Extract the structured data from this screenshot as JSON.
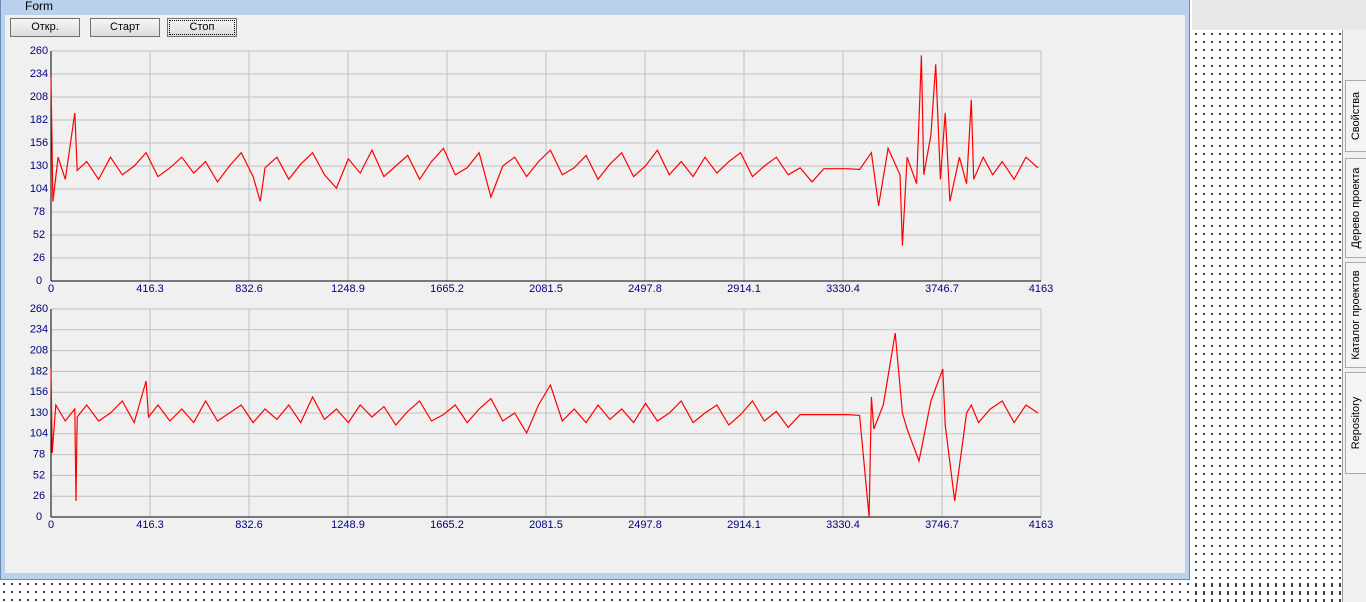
{
  "window": {
    "title": "Form",
    "buttons": [
      "Откр.",
      "Старт",
      "Стоп"
    ]
  },
  "side_tabs": [
    "Свойства",
    "Дерево проекта",
    "Каталог проектов",
    "Repository"
  ],
  "chart_data": [
    {
      "type": "line",
      "color": "#ff0000",
      "grid": true,
      "xlim": [
        0,
        4163
      ],
      "ylim": [
        0,
        260
      ],
      "xticks": [
        0,
        416.3,
        832.6,
        1248.9,
        1665.2,
        2081.5,
        2497.8,
        2914.1,
        3330.4,
        3746.7,
        4163
      ],
      "yticks": [
        0,
        26,
        52,
        78,
        104,
        130,
        156,
        182,
        208,
        234,
        260
      ],
      "x": [
        0,
        8,
        30,
        60,
        100,
        110,
        150,
        200,
        250,
        300,
        350,
        400,
        450,
        500,
        550,
        600,
        650,
        700,
        750,
        800,
        850,
        880,
        900,
        950,
        1000,
        1050,
        1100,
        1150,
        1200,
        1250,
        1300,
        1350,
        1400,
        1450,
        1500,
        1550,
        1600,
        1650,
        1700,
        1750,
        1800,
        1850,
        1900,
        1950,
        2000,
        2050,
        2100,
        2150,
        2200,
        2250,
        2300,
        2350,
        2400,
        2450,
        2500,
        2550,
        2600,
        2650,
        2700,
        2750,
        2800,
        2850,
        2900,
        2950,
        3000,
        3050,
        3100,
        3150,
        3200,
        3250,
        3300,
        3350,
        3400,
        3450,
        3480,
        3520,
        3570,
        3580,
        3600,
        3640,
        3660,
        3670,
        3700,
        3720,
        3740,
        3760,
        3780,
        3820,
        3850,
        3870,
        3880,
        3920,
        3960,
        4000,
        4050,
        4100,
        4150
      ],
      "values": [
        230,
        90,
        140,
        115,
        190,
        125,
        135,
        115,
        140,
        120,
        130,
        145,
        118,
        128,
        140,
        122,
        135,
        112,
        130,
        145,
        118,
        90,
        128,
        140,
        115,
        132,
        145,
        120,
        105,
        138,
        122,
        148,
        118,
        130,
        142,
        115,
        135,
        150,
        120,
        128,
        145,
        95,
        130,
        140,
        118,
        135,
        148,
        120,
        128,
        142,
        115,
        132,
        145,
        118,
        130,
        148,
        120,
        135,
        118,
        140,
        122,
        135,
        145,
        118,
        130,
        140,
        120,
        128,
        112,
        127,
        127,
        127,
        126,
        145,
        85,
        150,
        120,
        40,
        140,
        110,
        255,
        120,
        165,
        245,
        115,
        190,
        90,
        140,
        110,
        205,
        115,
        140,
        120,
        135,
        115,
        140,
        128
      ]
    },
    {
      "type": "line",
      "color": "#ff0000",
      "grid": true,
      "xlim": [
        0,
        4163
      ],
      "ylim": [
        0,
        260
      ],
      "xticks": [
        0,
        416.3,
        832.6,
        1248.9,
        1665.2,
        2081.5,
        2497.8,
        2914.1,
        3330.4,
        3746.7,
        4163
      ],
      "yticks": [
        0,
        26,
        52,
        78,
        104,
        130,
        156,
        182,
        208,
        234,
        260
      ],
      "x": [
        0,
        5,
        20,
        60,
        100,
        105,
        110,
        150,
        200,
        250,
        300,
        350,
        400,
        410,
        450,
        500,
        550,
        600,
        650,
        700,
        750,
        800,
        850,
        900,
        950,
        1000,
        1050,
        1100,
        1150,
        1200,
        1250,
        1300,
        1350,
        1400,
        1450,
        1500,
        1550,
        1600,
        1650,
        1700,
        1750,
        1800,
        1850,
        1900,
        1950,
        2000,
        2050,
        2100,
        2150,
        2200,
        2250,
        2300,
        2350,
        2400,
        2450,
        2500,
        2550,
        2600,
        2650,
        2700,
        2750,
        2800,
        2850,
        2900,
        2950,
        3000,
        3050,
        3100,
        3150,
        3200,
        3250,
        3300,
        3350,
        3400,
        3440,
        3450,
        3460,
        3500,
        3550,
        3580,
        3600,
        3650,
        3700,
        3750,
        3760,
        3800,
        3850,
        3870,
        3900,
        3950,
        4000,
        4050,
        4100,
        4150
      ],
      "values": [
        185,
        80,
        140,
        120,
        135,
        20,
        125,
        140,
        120,
        130,
        145,
        118,
        170,
        125,
        140,
        120,
        135,
        118,
        145,
        120,
        130,
        140,
        118,
        135,
        122,
        140,
        118,
        150,
        122,
        135,
        118,
        140,
        125,
        138,
        115,
        132,
        145,
        120,
        128,
        140,
        118,
        135,
        148,
        120,
        130,
        105,
        140,
        165,
        120,
        135,
        118,
        140,
        122,
        135,
        118,
        142,
        120,
        130,
        145,
        118,
        130,
        140,
        115,
        128,
        145,
        120,
        132,
        112,
        128,
        128,
        128,
        128,
        128,
        127,
        0,
        150,
        110,
        140,
        230,
        130,
        110,
        70,
        145,
        185,
        115,
        20,
        130,
        140,
        118,
        135,
        145,
        118,
        140,
        130
      ]
    }
  ]
}
